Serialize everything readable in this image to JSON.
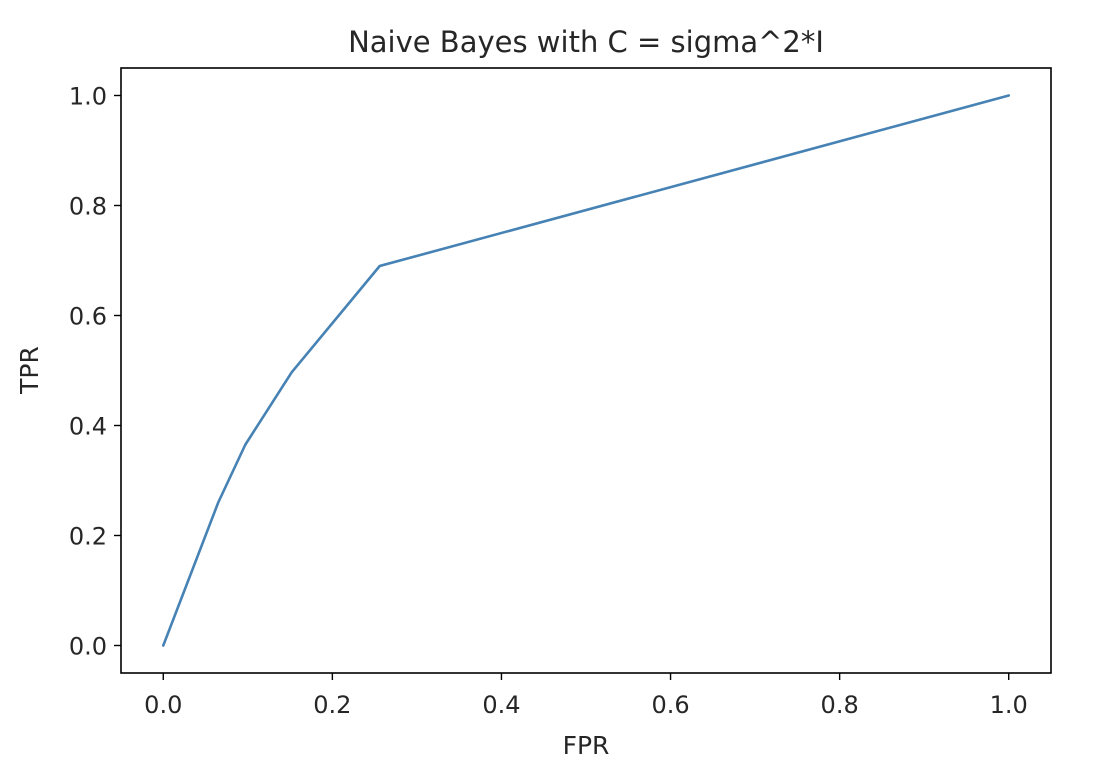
{
  "chart_data": {
    "type": "line",
    "title": "Naive Bayes with C = sigma^2*I",
    "xlabel": "FPR",
    "ylabel": "TPR",
    "xlim": [
      -0.05,
      1.05
    ],
    "ylim": [
      -0.05,
      1.05
    ],
    "xticks": [
      0.0,
      0.2,
      0.4,
      0.6,
      0.8,
      1.0
    ],
    "yticks": [
      0.0,
      0.2,
      0.4,
      0.6,
      0.8,
      1.0
    ],
    "xtick_labels": [
      "0.0",
      "0.2",
      "0.4",
      "0.6",
      "0.8",
      "1.0"
    ],
    "ytick_labels": [
      "0.0",
      "0.2",
      "0.4",
      "0.6",
      "0.8",
      "1.0"
    ],
    "grid": false,
    "series": [
      {
        "color": "#4682b4",
        "x": [
          0.0,
          0.065,
          0.097,
          0.152,
          0.256,
          1.0
        ],
        "y": [
          0.0,
          0.26,
          0.365,
          0.497,
          0.69,
          1.0
        ]
      }
    ]
  }
}
